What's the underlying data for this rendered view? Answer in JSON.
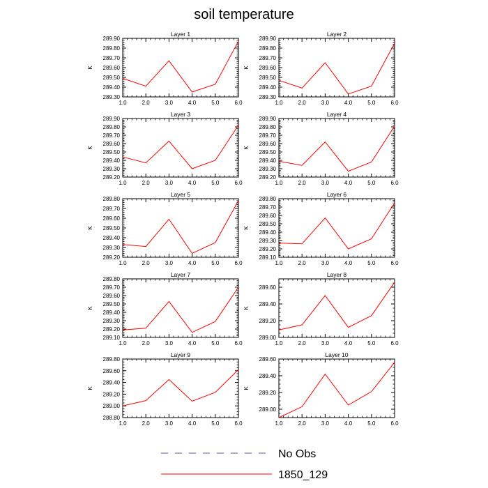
{
  "title": "soil temperature",
  "colors": {
    "series_line": "#ff0000",
    "obs_line": "#5555aa",
    "axis": "#000000"
  },
  "legend": [
    {
      "label": "No Obs",
      "style": "dashed",
      "color": "#5555aa"
    },
    {
      "label": "1850_129",
      "style": "solid",
      "color": "#ff0000"
    }
  ],
  "chart_data": [
    {
      "type": "line",
      "title": "Layer 1",
      "ylabel": "K",
      "x": [
        1,
        2,
        3,
        4,
        5,
        6
      ],
      "xticks": [
        "1.0",
        "2.0",
        "3.0",
        "4.0",
        "5.0",
        "6.0"
      ],
      "ylim": [
        289.3,
        289.9
      ],
      "yticks": [
        "289.30",
        "289.40",
        "289.50",
        "289.60",
        "289.70",
        "289.80",
        "289.90"
      ],
      "series": [
        {
          "name": "1850_129",
          "values": [
            289.49,
            289.41,
            289.67,
            289.35,
            289.43,
            289.87
          ]
        }
      ]
    },
    {
      "type": "line",
      "title": "Layer 2",
      "ylabel": "K",
      "x": [
        1,
        2,
        3,
        4,
        5,
        6
      ],
      "xticks": [
        "1.0",
        "2.0",
        "3.0",
        "4.0",
        "5.0",
        "6.0"
      ],
      "ylim": [
        289.3,
        289.9
      ],
      "yticks": [
        "289.30",
        "289.40",
        "289.50",
        "289.60",
        "289.70",
        "289.80",
        "289.90"
      ],
      "series": [
        {
          "name": "1850_129",
          "values": [
            289.47,
            289.39,
            289.65,
            289.33,
            289.41,
            289.85
          ]
        }
      ]
    },
    {
      "type": "line",
      "title": "Layer 3",
      "ylabel": "K",
      "x": [
        1,
        2,
        3,
        4,
        5,
        6
      ],
      "xticks": [
        "1.0",
        "2.0",
        "3.0",
        "4.0",
        "5.0",
        "6.0"
      ],
      "ylim": [
        289.2,
        289.9
      ],
      "yticks": [
        "289.20",
        "289.30",
        "289.40",
        "289.50",
        "289.60",
        "289.70",
        "289.80",
        "289.90"
      ],
      "series": [
        {
          "name": "1850_129",
          "values": [
            289.44,
            289.37,
            289.63,
            289.3,
            289.4,
            289.82
          ]
        }
      ]
    },
    {
      "type": "line",
      "title": "Layer 4",
      "ylabel": "K",
      "x": [
        1,
        2,
        3,
        4,
        5,
        6
      ],
      "xticks": [
        "1.0",
        "2.0",
        "3.0",
        "4.0",
        "5.0",
        "6.0"
      ],
      "ylim": [
        289.2,
        289.9
      ],
      "yticks": [
        "289.20",
        "289.30",
        "289.40",
        "289.50",
        "289.60",
        "289.70",
        "289.80",
        "289.90"
      ],
      "series": [
        {
          "name": "1850_129",
          "values": [
            289.39,
            289.34,
            289.62,
            289.27,
            289.38,
            289.81
          ]
        }
      ]
    },
    {
      "type": "line",
      "title": "Layer 5",
      "ylabel": "K",
      "x": [
        1,
        2,
        3,
        4,
        5,
        6
      ],
      "xticks": [
        "1.0",
        "2.0",
        "3.0",
        "4.0",
        "5.0",
        "6.0"
      ],
      "ylim": [
        289.2,
        289.8
      ],
      "yticks": [
        "289.20",
        "289.30",
        "289.40",
        "289.50",
        "289.60",
        "289.70",
        "289.80"
      ],
      "series": [
        {
          "name": "1850_129",
          "values": [
            289.33,
            289.31,
            289.59,
            289.24,
            289.35,
            289.78
          ]
        }
      ]
    },
    {
      "type": "line",
      "title": "Layer 6",
      "ylabel": "K",
      "x": [
        1,
        2,
        3,
        4,
        5,
        6
      ],
      "xticks": [
        "1.0",
        "2.0",
        "3.0",
        "4.0",
        "5.0",
        "6.0"
      ],
      "ylim": [
        289.1,
        289.8
      ],
      "yticks": [
        "289.10",
        "289.20",
        "289.30",
        "289.40",
        "289.50",
        "289.60",
        "289.70",
        "289.80"
      ],
      "series": [
        {
          "name": "1850_129",
          "values": [
            289.27,
            289.26,
            289.57,
            289.2,
            289.32,
            289.75
          ]
        }
      ]
    },
    {
      "type": "line",
      "title": "Layer 7",
      "ylabel": "K",
      "x": [
        1,
        2,
        3,
        4,
        5,
        6
      ],
      "xticks": [
        "1.0",
        "2.0",
        "3.0",
        "4.0",
        "5.0",
        "6.0"
      ],
      "ylim": [
        289.1,
        289.8
      ],
      "yticks": [
        "289.10",
        "289.20",
        "289.30",
        "289.40",
        "289.50",
        "289.60",
        "289.70",
        "289.80"
      ],
      "series": [
        {
          "name": "1850_129",
          "values": [
            289.19,
            289.21,
            289.53,
            289.16,
            289.29,
            289.7
          ]
        }
      ]
    },
    {
      "type": "line",
      "title": "Layer 8",
      "ylabel": "K",
      "x": [
        1,
        2,
        3,
        4,
        5,
        6
      ],
      "xticks": [
        "1.0",
        "2.0",
        "3.0",
        "4.0",
        "5.0",
        "6.0"
      ],
      "ylim": [
        289.0,
        289.7
      ],
      "yticks": [
        "289.00",
        "289.20",
        "289.40",
        "289.60"
      ],
      "series": [
        {
          "name": "1850_129",
          "values": [
            289.09,
            289.15,
            289.5,
            289.12,
            289.26,
            289.66
          ]
        }
      ]
    },
    {
      "type": "line",
      "title": "Layer 9",
      "ylabel": "K",
      "x": [
        1,
        2,
        3,
        4,
        5,
        6
      ],
      "xticks": [
        "1.0",
        "2.0",
        "3.0",
        "4.0",
        "5.0",
        "6.0"
      ],
      "ylim": [
        288.8,
        289.8
      ],
      "yticks": [
        "288.80",
        "289.00",
        "289.20",
        "289.40",
        "289.60",
        "289.80"
      ],
      "series": [
        {
          "name": "1850_129",
          "values": [
            289.0,
            289.09,
            289.45,
            289.08,
            289.23,
            289.62
          ]
        }
      ]
    },
    {
      "type": "line",
      "title": "Layer 10",
      "ylabel": "K",
      "x": [
        1,
        2,
        3,
        4,
        5,
        6
      ],
      "xticks": [
        "1.0",
        "2.0",
        "3.0",
        "4.0",
        "5.0",
        "6.0"
      ],
      "ylim": [
        288.9,
        289.6
      ],
      "yticks": [
        "289.00",
        "289.20",
        "289.40",
        "289.60"
      ],
      "series": [
        {
          "name": "1850_129",
          "values": [
            288.9,
            289.03,
            289.42,
            289.05,
            289.21,
            289.56
          ]
        }
      ]
    }
  ]
}
